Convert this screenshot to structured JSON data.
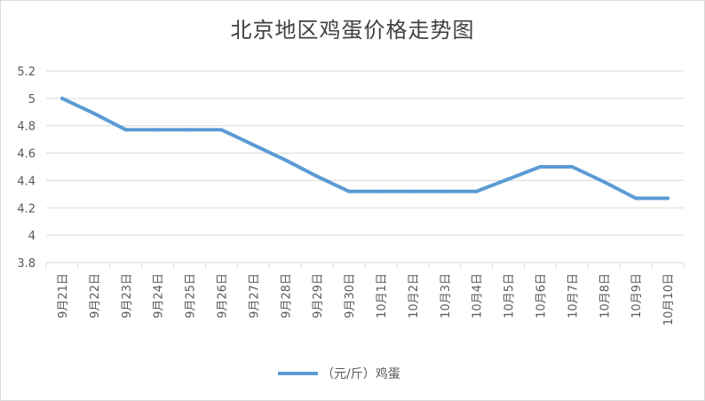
{
  "chart_data": {
    "type": "line",
    "title": "北京地区鸡蛋价格走势图",
    "categories": [
      "9月21日",
      "9月22日",
      "9月23日",
      "9月24日",
      "9月25日",
      "9月26日",
      "9月27日",
      "9月28日",
      "9月29日",
      "9月30日",
      "10月1日",
      "10月2日",
      "10月3日",
      "10月4日",
      "10月5日",
      "10月6日",
      "10月7日",
      "10月8日",
      "10月9日",
      "10月10日"
    ],
    "series": [
      {
        "name": "（元/斤）鸡蛋",
        "values": [
          5.0,
          4.89,
          4.77,
          4.77,
          4.77,
          4.77,
          4.66,
          4.55,
          4.43,
          4.32,
          4.32,
          4.32,
          4.32,
          4.32,
          4.41,
          4.5,
          4.5,
          4.39,
          4.27,
          4.27
        ],
        "color": "#5b9bd5"
      }
    ],
    "yticks": [
      "3.8",
      "4",
      "4.2",
      "4.4",
      "4.6",
      "4.8",
      "5",
      "5.2"
    ],
    "ylim": [
      3.8,
      5.2
    ],
    "grid": true,
    "legend": "bottom-center"
  }
}
